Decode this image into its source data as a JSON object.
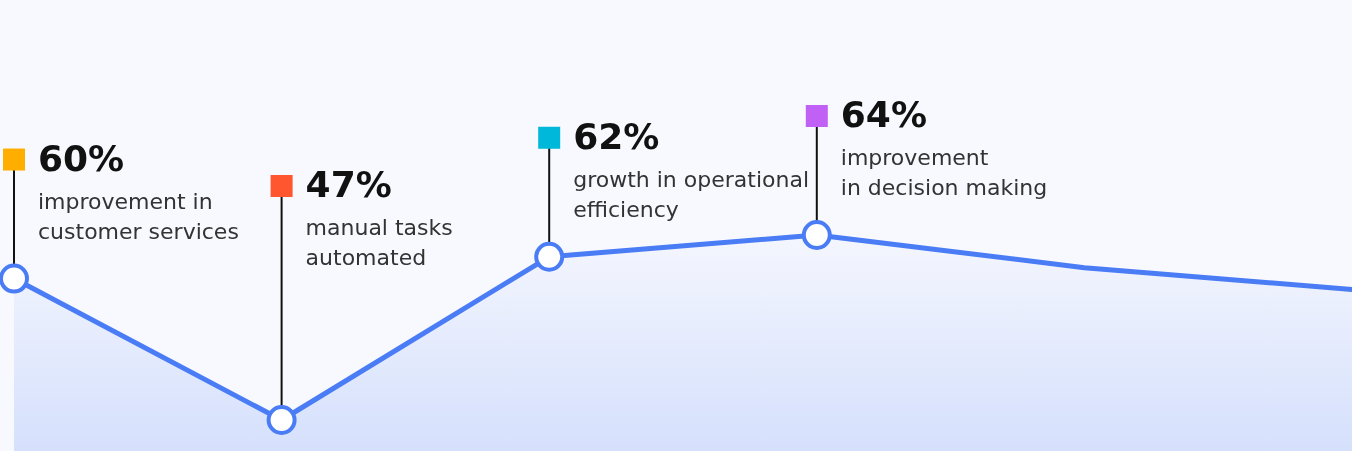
{
  "chart_data": {
    "type": "area",
    "categories": [
      null,
      null,
      null,
      null,
      null,
      null
    ],
    "series": [
      {
        "color": "#4a7cf5",
        "values": [
          60,
          47,
          62,
          64,
          61,
          59
        ],
        "value_labels": [
          "60%",
          "47%",
          "62%",
          "64%",
          null,
          null
        ],
        "colors": [
          "#ffae00",
          "#ff5630",
          "#00b8d9",
          "#c060f5",
          null,
          null
        ]
      }
    ],
    "marker": "circle",
    "annotations": [
      "improvement in\ncustomer services",
      "manual tasks\nautomated",
      "growth in operational\nefficiency",
      "improvement\nin decision making"
    ]
  }
}
